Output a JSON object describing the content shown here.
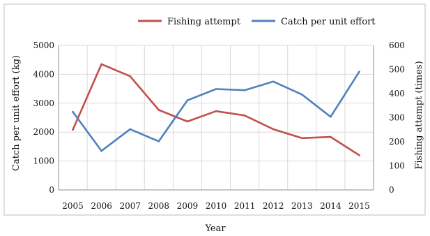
{
  "chart_data": {
    "type": "line",
    "title": "",
    "xlabel": "Year",
    "ylabel_left": "Catch per unit effort (kg)",
    "ylabel_right": "Fishing attempt (times)",
    "categories": [
      "2005",
      "2006",
      "2007",
      "2008",
      "2009",
      "2010",
      "2011",
      "2012",
      "2013",
      "2014",
      "2015"
    ],
    "ylim_left": [
      0,
      5000
    ],
    "yticks_left": [
      "0",
      "1000",
      "2000",
      "3000",
      "4000",
      "5000"
    ],
    "ylim_right": [
      0,
      600
    ],
    "yticks_right": [
      "0",
      "100",
      "200",
      "300",
      "400",
      "500",
      "600"
    ],
    "grid": true,
    "legend_position": "top",
    "series": [
      {
        "name": "Fishing attempt",
        "axis": "right",
        "color": "#c0504d",
        "values": [
          250,
          522,
          472,
          332,
          284,
          327,
          309,
          252,
          215,
          220,
          144
        ]
      },
      {
        "name": "Catch per unit effort",
        "axis": "left",
        "color": "#4f81bd",
        "values": [
          2700,
          1350,
          2100,
          1680,
          3100,
          3490,
          3450,
          3750,
          3300,
          2530,
          4090
        ]
      }
    ]
  }
}
